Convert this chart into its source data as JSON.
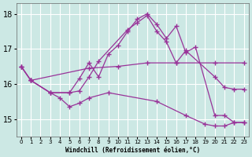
{
  "xlabel": "Windchill (Refroidissement éolien,°C)",
  "background_color": "#cce8e4",
  "grid_color": "#ffffff",
  "line_color": "#993399",
  "xlim": [
    -0.5,
    23.5
  ],
  "ylim": [
    14.5,
    18.3
  ],
  "yticks": [
    15,
    16,
    17,
    18
  ],
  "xticks": [
    0,
    1,
    2,
    3,
    4,
    5,
    6,
    7,
    8,
    9,
    10,
    11,
    12,
    13,
    14,
    15,
    16,
    17,
    18,
    19,
    20,
    21,
    22,
    23
  ],
  "lines": [
    {
      "x": [
        0,
        1,
        7,
        10,
        13,
        16,
        20,
        23
      ],
      "y": [
        16.5,
        16.1,
        16.45,
        16.5,
        16.6,
        16.6,
        16.6,
        16.6
      ]
    },
    {
      "x": [
        0,
        1,
        3,
        5,
        6,
        7,
        8,
        9,
        10,
        11,
        12,
        13,
        14,
        15,
        16,
        17,
        18,
        20,
        21,
        22,
        23
      ],
      "y": [
        16.5,
        16.1,
        15.75,
        15.75,
        16.15,
        16.6,
        16.2,
        16.85,
        17.1,
        17.5,
        17.85,
        18.0,
        17.7,
        17.3,
        17.65,
        16.9,
        17.05,
        15.1,
        15.1,
        14.9,
        14.9
      ]
    },
    {
      "x": [
        0,
        1,
        3,
        5,
        6,
        7,
        8,
        11,
        12,
        13,
        14,
        15,
        16,
        17,
        20,
        21,
        22,
        23
      ],
      "y": [
        16.5,
        16.1,
        15.75,
        15.75,
        15.8,
        16.2,
        16.65,
        17.55,
        17.75,
        17.95,
        17.5,
        17.2,
        16.6,
        16.95,
        16.2,
        15.9,
        15.85,
        15.85
      ]
    },
    {
      "x": [
        1,
        3,
        4,
        5,
        6,
        7,
        9,
        14,
        17,
        19,
        20,
        21,
        22,
        23
      ],
      "y": [
        16.1,
        15.75,
        15.6,
        15.35,
        15.45,
        15.6,
        15.75,
        15.5,
        15.1,
        14.85,
        14.8,
        14.8,
        14.9,
        14.9
      ]
    }
  ]
}
